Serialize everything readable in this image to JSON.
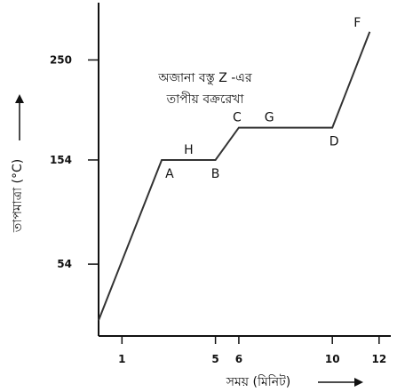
{
  "chart_data": {
    "type": "line",
    "title_lines": [
      "অজানা বস্তু Z -এর",
      "তাপীয় বক্ররেখা"
    ],
    "xlabel": "সময় (মিনিট)",
    "ylabel": "তাপমাত্রা (°C)",
    "x_ticks": [
      1,
      5,
      6,
      10,
      12
    ],
    "y_ticks": [
      {
        "value": 54,
        "label": "54"
      },
      {
        "value": 154,
        "label": "154"
      },
      {
        "value": 250,
        "label": "250"
      }
    ],
    "xlim": [
      0,
      12.5
    ],
    "ylim": [
      -15,
      305
    ],
    "grid": false,
    "series": [
      {
        "points": [
          {
            "x": 0,
            "y": 0,
            "label": ""
          },
          {
            "x": 2.7,
            "y": 154,
            "label": "A"
          },
          {
            "x": 5,
            "y": 154,
            "label": "B"
          },
          {
            "x": 6,
            "y": 185,
            "label": "C"
          },
          {
            "x": 10,
            "y": 185,
            "label": "D"
          },
          {
            "x": 11.6,
            "y": 277,
            "label": "F"
          }
        ]
      }
    ],
    "segment_labels": [
      {
        "text": "H",
        "x": 3.85,
        "y": 154
      },
      {
        "text": "G",
        "x": 7.3,
        "y": 185
      }
    ],
    "colors": {
      "line": "#333333",
      "axis": "#111111",
      "text": "#111111"
    }
  }
}
